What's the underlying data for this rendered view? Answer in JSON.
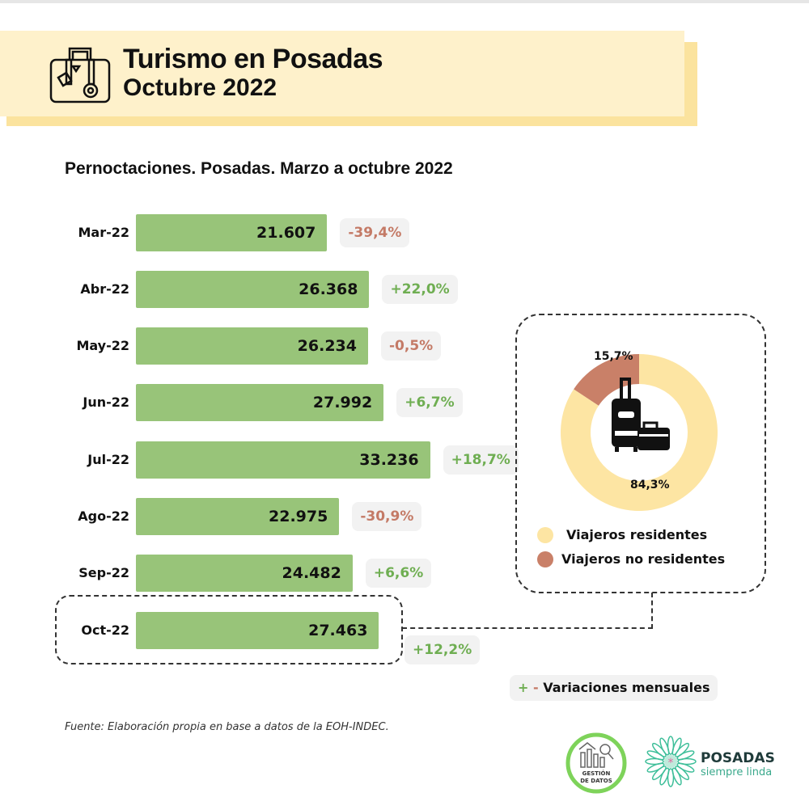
{
  "header": {
    "title": "Turismo en Posadas",
    "subtitle": "Octubre 2022"
  },
  "chart_data": {
    "type": "bar",
    "orientation": "horizontal",
    "title": "Pernoctaciones. Posadas. Marzo a octubre 2022",
    "categories": [
      "Mar-22",
      "Abr-22",
      "May-22",
      "Jun-22",
      "Jul-22",
      "Ago-22",
      "Sep-22",
      "Oct-22"
    ],
    "values": [
      21607,
      26368,
      26234,
      27992,
      33236,
      22975,
      24482,
      27463
    ],
    "value_labels": [
      "21.607",
      "26.368",
      "26.234",
      "27.992",
      "33.236",
      "22.975",
      "24.482",
      "27.463"
    ],
    "variations": [
      "-39,4%",
      "+22,0%",
      "-0,5%",
      "+6,7%",
      "+18,7%",
      "-30,9%",
      "+6,6%",
      "+12,2%"
    ],
    "highlighted": "Oct-22",
    "bar_color": "#98c479",
    "positive_color": "#6fae52",
    "negative_color": "#c47a66"
  },
  "donut": {
    "type": "pie",
    "slices": [
      {
        "name": "Viajeros residentes",
        "value": 84.3,
        "label": "84,3%",
        "color": "#fde5a3"
      },
      {
        "name": "Viajeros no residentes",
        "value": 15.7,
        "label": "15,7%",
        "color": "#c98068"
      }
    ]
  },
  "variation_legend": {
    "plus": "+",
    "minus": "-",
    "label": "Variaciones mensuales"
  },
  "source": "Fuente: Elaboración propia en base a datos de la EOH-INDEC.",
  "logos": {
    "gestion": "GESTIÓN DE DATOS",
    "posadas_title": "POSADAS",
    "posadas_sub": "siempre linda"
  }
}
